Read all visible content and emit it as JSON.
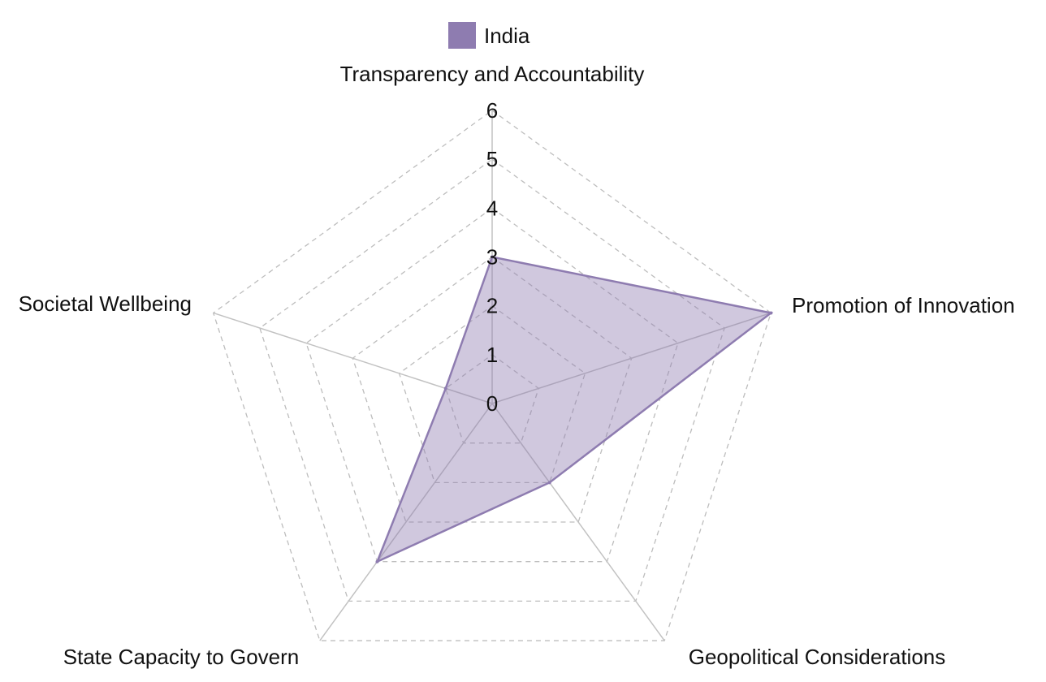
{
  "chart_data": {
    "type": "radar",
    "title": "",
    "axes": [
      "Transparency and Accountability",
      "Promotion of Innovation",
      "Geopolitical Considerations",
      "State Capacity to Govern",
      "Societal Wellbeing"
    ],
    "rlim": [
      0,
      6
    ],
    "ticks": [
      "0",
      "1",
      "2",
      "3",
      "4",
      "5",
      "6"
    ],
    "grid": true,
    "legend_position": "top",
    "series": [
      {
        "name": "India",
        "values": [
          3,
          6,
          2,
          4,
          1
        ],
        "color": "#8e7cb0"
      }
    ]
  }
}
